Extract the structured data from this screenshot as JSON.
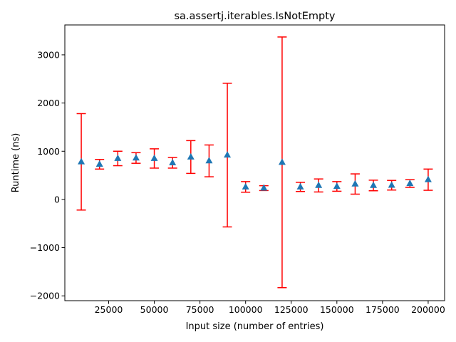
{
  "chart_data": {
    "type": "scatter",
    "title": "sa.assertj.iterables.IsNotEmpty",
    "xlabel": "Input size (number of entries)",
    "ylabel": "Runtime (ns)",
    "xlim": [
      1000,
      209000
    ],
    "ylim": [
      -2100,
      3620
    ],
    "x_ticks": [
      25000,
      50000,
      75000,
      100000,
      125000,
      150000,
      175000,
      200000
    ],
    "x_tick_labels": [
      "25000",
      "50000",
      "75000",
      "100000",
      "125000",
      "150000",
      "175000",
      "200000"
    ],
    "y_ticks": [
      -2000,
      -1000,
      0,
      1000,
      2000,
      3000
    ],
    "y_tick_labels": [
      "−2000",
      "−1000",
      "0",
      "1000",
      "2000",
      "3000"
    ],
    "grid": false,
    "series": [
      {
        "marker": "triangle-up",
        "color": "#1f77b4",
        "error_color": "#ff0000",
        "x": [
          10000,
          20000,
          30000,
          40000,
          50000,
          60000,
          70000,
          80000,
          90000,
          100000,
          110000,
          120000,
          130000,
          140000,
          150000,
          160000,
          170000,
          180000,
          190000,
          200000
        ],
        "y": [
          780,
          730,
          850,
          860,
          850,
          760,
          880,
          800,
          920,
          260,
          235,
          770,
          260,
          290,
          270,
          320,
          290,
          295,
          330,
          410
        ],
        "yerr": [
          1000,
          100,
          150,
          110,
          200,
          110,
          340,
          330,
          1490,
          110,
          50,
          2600,
          95,
          135,
          100,
          210,
          110,
          100,
          80,
          220
        ]
      }
    ]
  }
}
